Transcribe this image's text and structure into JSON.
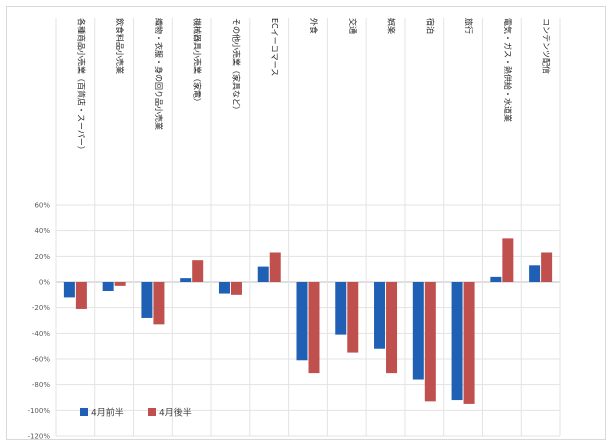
{
  "chart_data": {
    "type": "bar",
    "categories": [
      "各種商品小売業（百貨店・スーパー）",
      "飲食料品小売業",
      "織物・衣服・身の回り品小売業",
      "機械器具小売業（家電）",
      "その他小売業（家具など）",
      "ECイーコマース",
      "外食",
      "交通",
      "娯楽",
      "宿泊",
      "旅行",
      "電気・ガス・熱供給・水道業",
      "コンテンツ配信"
    ],
    "series": [
      {
        "name": "4月前半",
        "color": "#1f5fb4",
        "values": [
          -12,
          -7,
          -28,
          3,
          -9,
          12,
          -61,
          -41,
          -52,
          -76,
          -92,
          4,
          13
        ]
      },
      {
        "name": "4月後半",
        "color": "#c0504d",
        "values": [
          -21,
          -3,
          -33,
          17,
          -10,
          23,
          -71,
          -55,
          -71,
          -93,
          -95,
          34,
          23
        ]
      }
    ],
    "yticks": [
      "60%",
      "40%",
      "20%",
      "0%",
      "-20%",
      "-40%",
      "-60%",
      "-80%",
      "-100%",
      "-120%"
    ],
    "ylim": [
      -120,
      60
    ],
    "title": "",
    "xlabel": "",
    "ylabel": "",
    "grid": true,
    "legend_position": "bottom-left",
    "legend": [
      "4月前半",
      "4月後半"
    ]
  }
}
